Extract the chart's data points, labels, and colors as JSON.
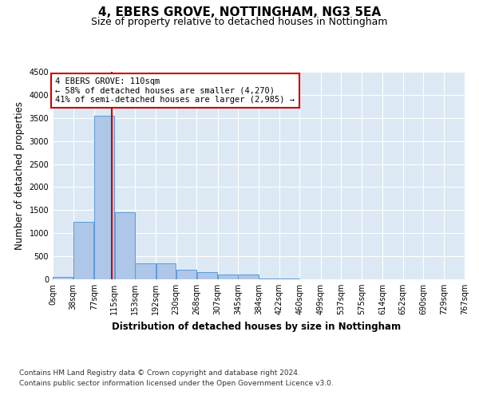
{
  "title": "4, EBERS GROVE, NOTTINGHAM, NG3 5EA",
  "subtitle": "Size of property relative to detached houses in Nottingham",
  "xlabel": "Distribution of detached houses by size in Nottingham",
  "ylabel": "Number of detached properties",
  "footer_line1": "Contains HM Land Registry data © Crown copyright and database right 2024.",
  "footer_line2": "Contains public sector information licensed under the Open Government Licence v3.0.",
  "bin_labels": [
    "0sqm",
    "38sqm",
    "77sqm",
    "115sqm",
    "153sqm",
    "192sqm",
    "230sqm",
    "268sqm",
    "307sqm",
    "345sqm",
    "384sqm",
    "422sqm",
    "460sqm",
    "499sqm",
    "537sqm",
    "575sqm",
    "614sqm",
    "652sqm",
    "690sqm",
    "729sqm",
    "767sqm"
  ],
  "bin_edges": [
    0,
    38,
    77,
    115,
    153,
    192,
    230,
    268,
    307,
    345,
    384,
    422,
    460,
    499,
    537,
    575,
    614,
    652,
    690,
    729,
    767
  ],
  "bar_heights": [
    50,
    1250,
    3550,
    1450,
    350,
    350,
    200,
    150,
    100,
    100,
    20,
    20,
    0,
    0,
    0,
    0,
    0,
    0,
    0,
    0
  ],
  "bar_color": "#aec6e8",
  "bar_edge_color": "#5b9bd5",
  "property_size": 110,
  "property_label": "4 EBERS GROVE: 110sqm",
  "pct_smaller": 58,
  "n_smaller": 4270,
  "pct_larger_semi": 41,
  "n_larger_semi": 2985,
  "vline_color": "#cc0000",
  "annotation_box_color": "#cc0000",
  "ylim": [
    0,
    4500
  ],
  "yticks": [
    0,
    500,
    1000,
    1500,
    2000,
    2500,
    3000,
    3500,
    4000,
    4500
  ],
  "background_color": "#ffffff",
  "plot_bg_color": "#dce9f5",
  "grid_color": "#ffffff",
  "title_fontsize": 11,
  "subtitle_fontsize": 9,
  "axis_label_fontsize": 8.5,
  "tick_fontsize": 7,
  "footer_fontsize": 6.5
}
